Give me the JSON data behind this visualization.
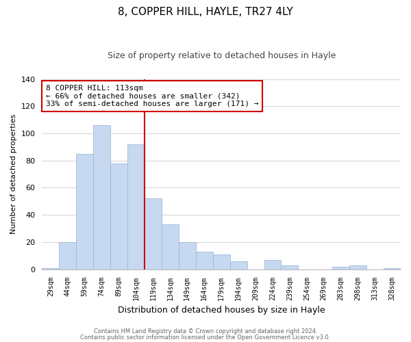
{
  "title": "8, COPPER HILL, HAYLE, TR27 4LY",
  "subtitle": "Size of property relative to detached houses in Hayle",
  "xlabel": "Distribution of detached houses by size in Hayle",
  "ylabel": "Number of detached properties",
  "categories": [
    "29sqm",
    "44sqm",
    "59sqm",
    "74sqm",
    "89sqm",
    "104sqm",
    "119sqm",
    "134sqm",
    "149sqm",
    "164sqm",
    "179sqm",
    "194sqm",
    "209sqm",
    "224sqm",
    "239sqm",
    "254sqm",
    "269sqm",
    "283sqm",
    "298sqm",
    "313sqm",
    "328sqm"
  ],
  "values": [
    1,
    20,
    85,
    106,
    78,
    92,
    52,
    33,
    20,
    13,
    11,
    6,
    0,
    7,
    3,
    0,
    0,
    2,
    3,
    0,
    1
  ],
  "bar_color": "#c6d9f0",
  "bar_edge_color": "#a0b8d8",
  "vline_x_index": 5.5,
  "vline_color": "#cc0000",
  "ylim": [
    0,
    140
  ],
  "yticks": [
    0,
    20,
    40,
    60,
    80,
    100,
    120,
    140
  ],
  "annotation_title": "8 COPPER HILL: 113sqm",
  "annotation_line1": "← 66% of detached houses are smaller (342)",
  "annotation_line2": "33% of semi-detached houses are larger (171) →",
  "annotation_box_color": "#ffffff",
  "annotation_box_edge": "#cc0000",
  "footer1": "Contains HM Land Registry data © Crown copyright and database right 2024.",
  "footer2": "Contains public sector information licensed under the Open Government Licence v3.0.",
  "background_color": "#ffffff",
  "grid_color": "#d8d8d8",
  "title_fontsize": 11,
  "subtitle_fontsize": 9,
  "xlabel_fontsize": 9,
  "ylabel_fontsize": 8
}
